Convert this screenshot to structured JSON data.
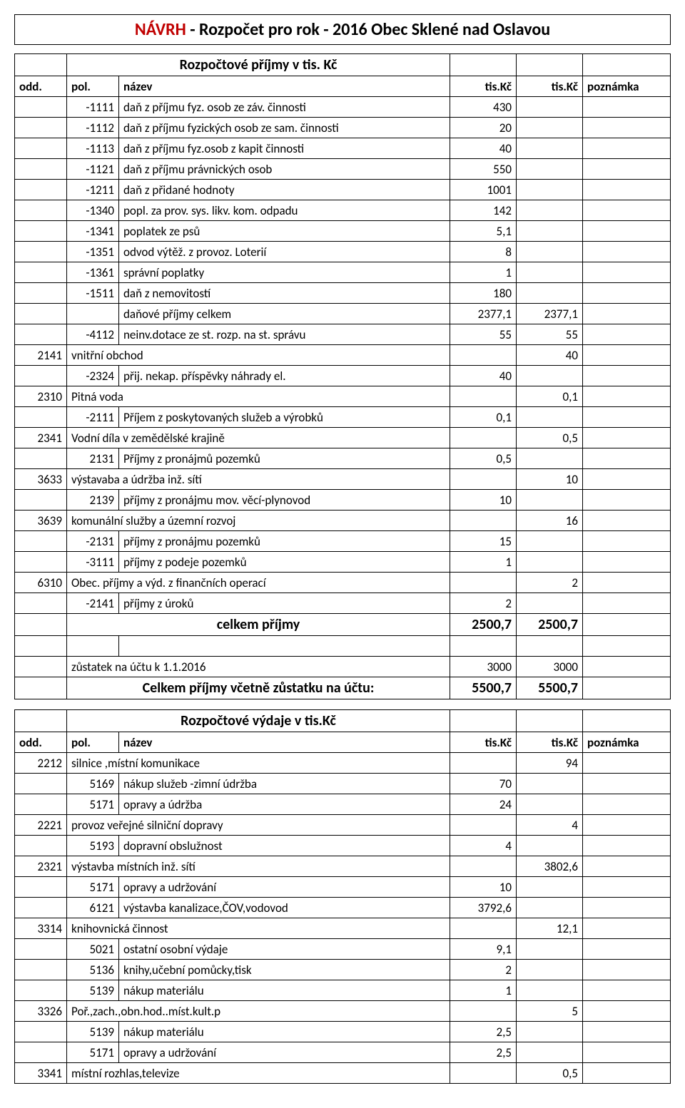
{
  "title_prefix": "NÁVRH",
  "title_rest": " - Rozpočet pro rok  - 2016 Obec Sklené nad Oslavou",
  "prijmy": {
    "section_header": "Rozpočtové  příjmy  v tis. Kč",
    "cols": {
      "odd": "odd.",
      "pol": "pol.",
      "nazev": "název",
      "v1": "tis.Kč",
      "v2": "tis.Kč",
      "poz": "poznámka"
    },
    "rows": [
      {
        "odd": "",
        "pol": "-1111",
        "naz": "daň z příjmu fyz. osob ze záv. činnosti",
        "v1": "430",
        "v2": ""
      },
      {
        "odd": "",
        "pol": "-1112",
        "naz": "daň z příjmu fyzických osob ze sam. činnosti",
        "v1": "20",
        "v2": ""
      },
      {
        "odd": "",
        "pol": "-1113",
        "naz": "daň z příjmu fyz.osob z kapit činnosti",
        "v1": "40",
        "v2": ""
      },
      {
        "odd": "",
        "pol": "-1121",
        "naz": "daň z příjmu právnických osob",
        "v1": "550",
        "v2": ""
      },
      {
        "odd": "",
        "pol": "-1211",
        "naz": "daň z přidané hodnoty",
        "v1": "1001",
        "v2": ""
      },
      {
        "odd": "",
        "pol": "-1340",
        "naz": "popl. za prov. sys. likv. kom. odpadu",
        "v1": "142",
        "v2": ""
      },
      {
        "odd": "",
        "pol": "-1341",
        "naz": "poplatek ze psů",
        "v1": "5,1",
        "v2": ""
      },
      {
        "odd": "",
        "pol": "-1351",
        "naz": "odvod výtěž. z provoz. Loterií",
        "v1": "8",
        "v2": ""
      },
      {
        "odd": "",
        "pol": "-1361",
        "naz": "správní poplatky",
        "v1": "1",
        "v2": ""
      },
      {
        "odd": "",
        "pol": "-1511",
        "naz": "daň z nemovitostí",
        "v1": "180",
        "v2": ""
      },
      {
        "odd": "",
        "pol": "",
        "naz": "daňové příjmy celkem",
        "v1": "2377,1",
        "v2": "2377,1"
      },
      {
        "odd": "",
        "pol": "-4112",
        "naz": "neinv.dotace ze st. rozp. na st. správu",
        "v1": "55",
        "v2": "55"
      },
      {
        "odd": "2141",
        "pol": "",
        "naz": "vnitřní obchod",
        "v1": "",
        "v2": "40",
        "merge": true
      },
      {
        "odd": "",
        "pol": "-2324",
        "naz": "přij. nekap. příspěvky náhrady el.",
        "v1": "40",
        "v2": ""
      },
      {
        "odd": "2310",
        "pol": "",
        "naz": "Pitná voda",
        "v1": "",
        "v2": "0,1",
        "merge": true
      },
      {
        "odd": "",
        "pol": "-2111",
        "naz": "Příjem z poskytovaných služeb a výrobků",
        "v1": "0,1",
        "v2": ""
      },
      {
        "odd": "2341",
        "pol": "",
        "naz": "Vodní díla v zemědělské krajině",
        "v1": "",
        "v2": "0,5",
        "merge": true
      },
      {
        "odd": "",
        "pol": "2131",
        "naz": "Příjmy z pronájmů pozemků",
        "v1": "0,5",
        "v2": ""
      },
      {
        "odd": "3633",
        "pol": "",
        "naz": "výstavaba a údržba inž. sítí",
        "v1": "",
        "v2": "10",
        "merge": true
      },
      {
        "odd": "",
        "pol": "2139",
        "naz": "příjmy z pronájmu mov. věcí-plynovod",
        "v1": "10",
        "v2": ""
      },
      {
        "odd": "3639",
        "pol": "",
        "naz": "komunální služby a územní rozvoj",
        "v1": "",
        "v2": "16",
        "merge": true
      },
      {
        "odd": "",
        "pol": "-2131",
        "naz": "příjmy z pronájmu pozemků",
        "v1": "15",
        "v2": ""
      },
      {
        "odd": "",
        "pol": "-3111",
        "naz": "příjmy z podeje pozemků",
        "v1": "1",
        "v2": ""
      },
      {
        "odd": "6310",
        "pol": "",
        "naz": " Obec. příjmy a výd. z finančních operací",
        "v1": "",
        "v2": "2",
        "merge": true
      },
      {
        "odd": "",
        "pol": "-2141",
        "naz": "příjmy z úroků",
        "v1": "2",
        "v2": ""
      }
    ],
    "total_row": {
      "label": "celkem příjmy",
      "v1": "2500,7",
      "v2": "2500,7"
    },
    "balance_row": {
      "label": "zůstatek na účtu k 1.1.2016",
      "v1": "3000",
      "v2": "3000"
    },
    "grand_row": {
      "label": "Celkem příjmy včetně zůstatku na účtu:",
      "v1": "5500,7",
      "v2": "5500,7"
    }
  },
  "vydaje": {
    "section_header": "Rozpočtové výdaje  v tis.Kč",
    "cols": {
      "odd": "odd.",
      "pol": "pol.",
      "nazev": "název",
      "v1": "tis.Kč",
      "v2": "tis.Kč",
      "poz": "poznámka"
    },
    "rows": [
      {
        "odd": "2212",
        "pol": "",
        "naz": " silnice ,místní komunikace",
        "v1": "",
        "v2": "94",
        "merge": true
      },
      {
        "odd": "",
        "pol": "5169",
        "naz": "nákup služeb -zimní údržba",
        "v1": "70",
        "v2": ""
      },
      {
        "odd": "",
        "pol": "5171",
        "naz": "opravy a údržba",
        "v1": "24",
        "v2": ""
      },
      {
        "odd": "2221",
        "pol": "",
        "naz": " provoz veřejné silniční dopravy",
        "v1": "",
        "v2": "4",
        "merge": true
      },
      {
        "odd": "",
        "pol": "5193",
        "naz": " dopravní obslužnost",
        "v1": "4",
        "v2": ""
      },
      {
        "odd": "2321",
        "pol": "",
        "naz": " výstavba místních inž. sítí",
        "v1": "",
        "v2": "3802,6",
        "merge": true
      },
      {
        "odd": "",
        "pol": "5171",
        "naz": " opravy a udržování",
        "v1": "10",
        "v2": ""
      },
      {
        "odd": "",
        "pol": "6121",
        "naz": "výstavba kanalizace,ČOV,vodovod",
        "v1": "3792,6",
        "v2": ""
      },
      {
        "odd": "3314",
        "pol": "",
        "naz": " knihovnická činnost",
        "v1": "",
        "v2": "12,1",
        "merge": true
      },
      {
        "odd": "",
        "pol": "5021",
        "naz": "ostatní osobní výdaje",
        "v1": "9,1",
        "v2": ""
      },
      {
        "odd": "",
        "pol": "5136",
        "naz": "knihy,učební pomůcky,tisk",
        "v1": "2",
        "v2": ""
      },
      {
        "odd": "",
        "pol": "5139",
        "naz": "nákup materiálu",
        "v1": "1",
        "v2": ""
      },
      {
        "odd": "3326",
        "pol": "",
        "naz": "Poř.,zach.,obn.hod..míst.kult.p",
        "v1": "",
        "v2": "5",
        "merge": true
      },
      {
        "odd": "",
        "pol": "5139",
        "naz": "nákup materiálu",
        "v1": "2,5",
        "v2": ""
      },
      {
        "odd": "",
        "pol": "5171",
        "naz": "opravy a udržování",
        "v1": "2,5",
        "v2": ""
      },
      {
        "odd": "3341",
        "pol": "",
        "naz": " místní rozhlas,televize",
        "v1": "",
        "v2": "0,5",
        "merge": true
      }
    ]
  }
}
